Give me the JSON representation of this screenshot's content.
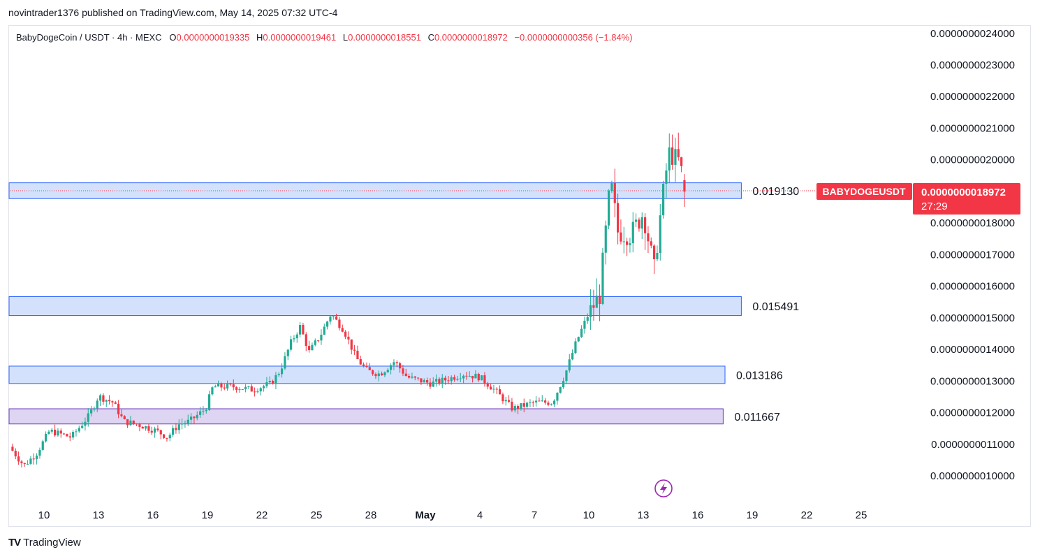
{
  "header": {
    "published": "novintrader1376 published on TradingView.com, May 14, 2025 07:32 UTC-4"
  },
  "legend": {
    "symbol": "BabyDogeCoin / USDT · 4h · MEXC",
    "o_label": "O",
    "o_value": "0.0000000019335",
    "h_label": "H",
    "h_value": "0.0000000019461",
    "l_label": "L",
    "l_value": "0.0000000018551",
    "c_label": "C",
    "c_value": "0.0000000018972",
    "change": "−0.0000000000356 (−1.84%)"
  },
  "price_tag": {
    "ticker": "BABYDOGEUSDT",
    "price": "0.0000000018972",
    "countdown": "27:29"
  },
  "colors": {
    "up": "#22ab94",
    "down": "#f23645",
    "zone_fill": "#d4e1fc",
    "zone_border": "#2962ff",
    "zone_purple_fill": "#ddd5f2",
    "zone_purple_border": "#673ab7"
  },
  "footer": {
    "brand": "TradingView"
  },
  "chart_data": {
    "type": "candlestick",
    "y_unit_note": "",
    "ylim": [
      9.3e-10,
      2.45e-09
    ],
    "y_ticks": [
      "0.0000000024000",
      "0.0000000023000",
      "0.0000000022000",
      "0.0000000021000",
      "0.0000000020000",
      "0.0000000018000",
      "0.0000000017000",
      "0.0000000016000",
      "0.0000000015000",
      "0.0000000014000",
      "0.0000000013000",
      "0.0000000012000",
      "0.0000000011000",
      "0.0000000010000"
    ],
    "y_tick_values": [
      2.4,
      2.3,
      2.2,
      2.1,
      2.0,
      1.8,
      1.7,
      1.6,
      1.5,
      1.4,
      1.3,
      1.2,
      1.1,
      1.0
    ],
    "x_ticks": [
      "10",
      "13",
      "16",
      "19",
      "22",
      "25",
      "28",
      "May",
      "4",
      "7",
      "10",
      "13",
      "16",
      "19",
      "22",
      "25"
    ],
    "x_tick_days": [
      0,
      3,
      6,
      9,
      12,
      15,
      18,
      21,
      24,
      27,
      30,
      33,
      36,
      39,
      42,
      45
    ],
    "zones": [
      {
        "label": "0.019130",
        "top": 1.925,
        "bottom": 1.875,
        "end_day": 38.4,
        "color": "blue"
      },
      {
        "label": "0.015491",
        "top": 1.565,
        "bottom": 1.505,
        "end_day": 38.4,
        "color": "blue"
      },
      {
        "label": "0.013186",
        "top": 1.345,
        "bottom": 1.29,
        "end_day": 37.5,
        "color": "blue"
      },
      {
        "label": "0.011667",
        "top": 1.21,
        "bottom": 1.162,
        "end_day": 37.4,
        "color": "purple"
      }
    ],
    "anchors": [
      [
        -1.9,
        1.09
      ],
      [
        -1.1,
        1.03
      ],
      [
        -0.4,
        1.07
      ],
      [
        0.3,
        1.14
      ],
      [
        1.5,
        1.12
      ],
      [
        2.5,
        1.19
      ],
      [
        3.0,
        1.25
      ],
      [
        3.8,
        1.23
      ],
      [
        4.4,
        1.17
      ],
      [
        5.2,
        1.16
      ],
      [
        6.2,
        1.14
      ],
      [
        6.8,
        1.12
      ],
      [
        7.4,
        1.16
      ],
      [
        8.0,
        1.17
      ],
      [
        8.9,
        1.21
      ],
      [
        9.3,
        1.28
      ],
      [
        10.5,
        1.28
      ],
      [
        11.5,
        1.27
      ],
      [
        12.5,
        1.29
      ],
      [
        13.0,
        1.33
      ],
      [
        13.6,
        1.42
      ],
      [
        14.1,
        1.47
      ],
      [
        14.6,
        1.39
      ],
      [
        15.2,
        1.44
      ],
      [
        15.8,
        1.51
      ],
      [
        16.5,
        1.46
      ],
      [
        17.2,
        1.37
      ],
      [
        17.8,
        1.33
      ],
      [
        18.5,
        1.32
      ],
      [
        19.3,
        1.36
      ],
      [
        20.0,
        1.31
      ],
      [
        21.3,
        1.29
      ],
      [
        22.0,
        1.3
      ],
      [
        23.1,
        1.32
      ],
      [
        24.0,
        1.31
      ],
      [
        24.8,
        1.27
      ],
      [
        25.8,
        1.21
      ],
      [
        27.0,
        1.23
      ],
      [
        28.0,
        1.23
      ],
      [
        28.7,
        1.32
      ],
      [
        29.3,
        1.42
      ],
      [
        29.9,
        1.5
      ],
      [
        30.6,
        1.57
      ],
      [
        31.2,
        1.93
      ],
      [
        31.6,
        1.77
      ],
      [
        32.3,
        1.76
      ],
      [
        33.0,
        1.83
      ],
      [
        33.6,
        1.65
      ],
      [
        34.0,
        1.85
      ],
      [
        34.4,
        2.02
      ],
      [
        35.0,
        1.99
      ],
      [
        35.3,
        1.9
      ]
    ]
  }
}
